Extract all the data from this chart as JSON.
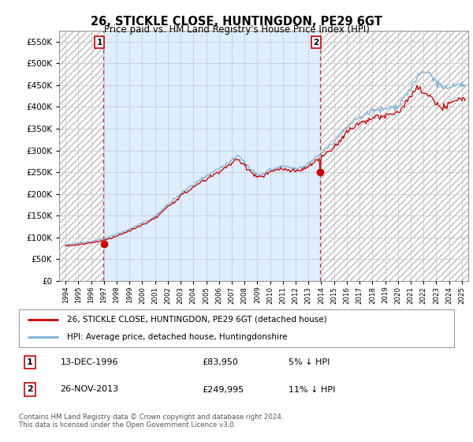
{
  "title": "26, STICKLE CLOSE, HUNTINGDON, PE29 6GT",
  "subtitle": "Price paid vs. HM Land Registry's House Price Index (HPI)",
  "legend_line1": "26, STICKLE CLOSE, HUNTINGDON, PE29 6GT (detached house)",
  "legend_line2": "HPI: Average price, detached house, Huntingdonshire",
  "annotation1_label": "1",
  "annotation1_date": "13-DEC-1996",
  "annotation1_price": "£83,950",
  "annotation1_hpi": "5% ↓ HPI",
  "annotation2_label": "2",
  "annotation2_date": "26-NOV-2013",
  "annotation2_price": "£249,995",
  "annotation2_hpi": "11% ↓ HPI",
  "footer": "Contains HM Land Registry data © Crown copyright and database right 2024.\nThis data is licensed under the Open Government Licence v3.0.",
  "price_color": "#cc0000",
  "hpi_color": "#7ab0d4",
  "annotation_color": "#cc0000",
  "background_color": "#ffffff",
  "grid_color": "#cccccc",
  "fill_between_color": "#ddeeff",
  "hatch_color": "#cccccc",
  "ylim": [
    0,
    575000
  ],
  "yticks": [
    0,
    50000,
    100000,
    150000,
    200000,
    250000,
    300000,
    350000,
    400000,
    450000,
    500000,
    550000
  ],
  "sale1_x": 1996.96,
  "sale1_y": 83950,
  "sale2_x": 2013.91,
  "sale2_y": 249995,
  "xlim_left": 1993.5,
  "xlim_right": 2025.5
}
